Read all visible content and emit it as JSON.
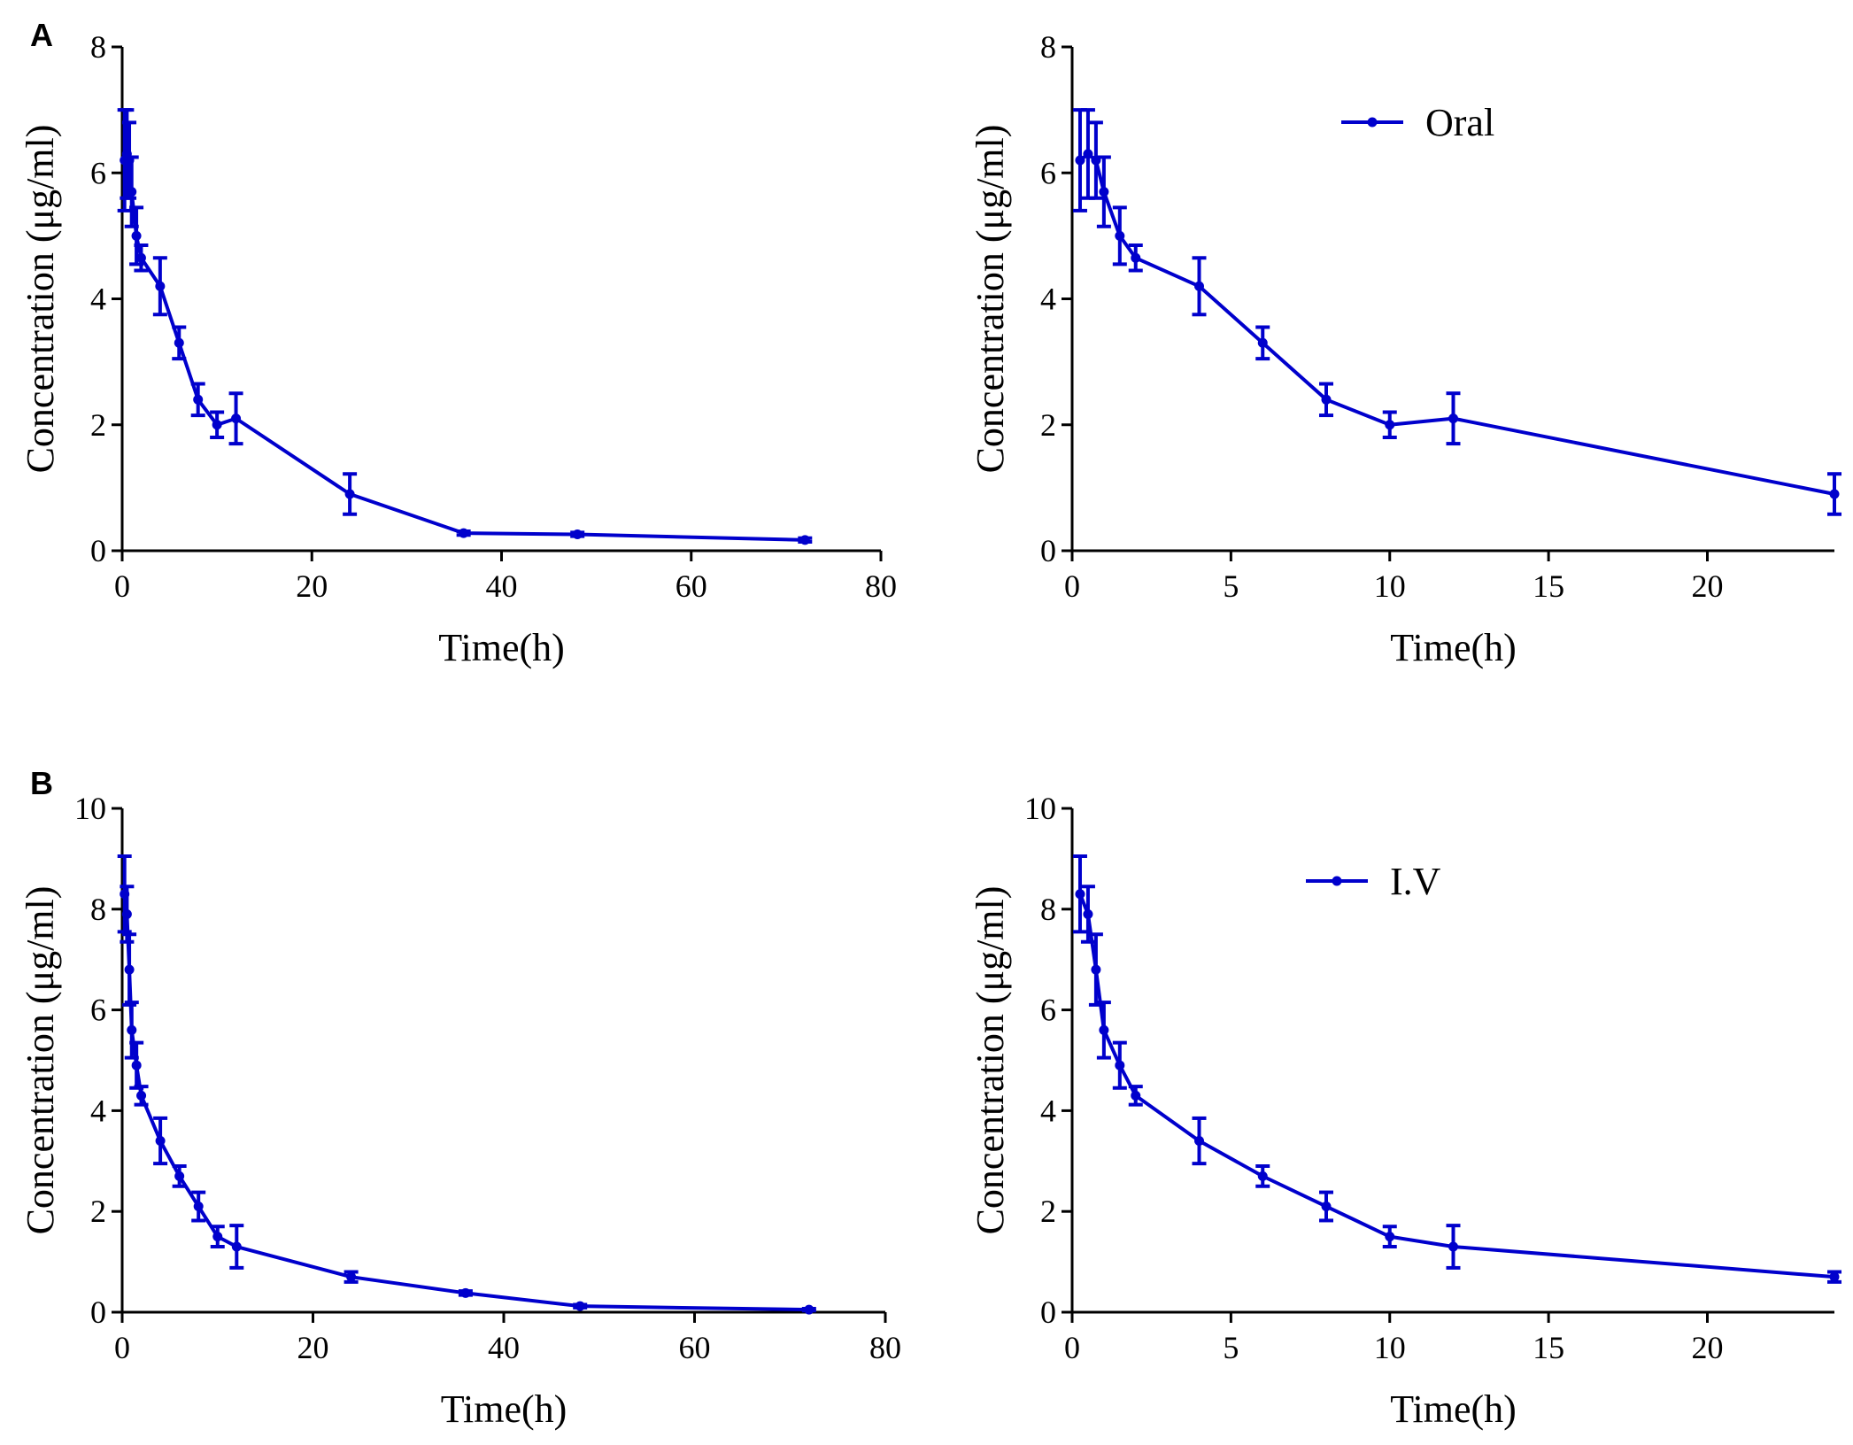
{
  "figure": {
    "panel_labels": [
      "A",
      "B"
    ]
  },
  "chart_data": [
    {
      "id": "A-left",
      "type": "line",
      "panel": "A",
      "xlabel": "Time(h)",
      "ylabel": "Concentration (μg/ml)",
      "xlim": [
        0,
        80
      ],
      "ylim": [
        0,
        8
      ],
      "xticks": [
        0,
        20,
        40,
        60,
        80
      ],
      "yticks": [
        0,
        2,
        4,
        6,
        8
      ],
      "legend": null,
      "series": [
        {
          "name": "Oral",
          "color": "#0000cc",
          "x": [
            0.25,
            0.5,
            0.75,
            1,
            1.5,
            2,
            4,
            6,
            8,
            10,
            12,
            24,
            36,
            48,
            72
          ],
          "y": [
            6.2,
            6.3,
            6.2,
            5.7,
            5.0,
            4.65,
            4.2,
            3.3,
            2.4,
            2.0,
            2.1,
            0.9,
            0.28,
            0.26,
            0.17
          ],
          "err": [
            0.8,
            0.7,
            0.6,
            0.55,
            0.45,
            0.2,
            0.45,
            0.25,
            0.25,
            0.2,
            0.4,
            0.32,
            0.03,
            0.03,
            0.03
          ]
        }
      ]
    },
    {
      "id": "A-right",
      "type": "line",
      "panel": "A",
      "xlabel": "Time(h)",
      "ylabel": "Concentration (μg/ml)",
      "xlim": [
        0,
        24
      ],
      "ylim": [
        0,
        8
      ],
      "xticks": [
        0,
        5,
        10,
        15,
        20
      ],
      "yticks": [
        0,
        2,
        4,
        6,
        8
      ],
      "legend": "Oral",
      "series": [
        {
          "name": "Oral",
          "color": "#0000cc",
          "x": [
            0.25,
            0.5,
            0.75,
            1,
            1.5,
            2,
            4,
            6,
            8,
            10,
            12,
            24
          ],
          "y": [
            6.2,
            6.3,
            6.2,
            5.7,
            5.0,
            4.65,
            4.2,
            3.3,
            2.4,
            2.0,
            2.1,
            0.9
          ],
          "err": [
            0.8,
            0.7,
            0.6,
            0.55,
            0.45,
            0.2,
            0.45,
            0.25,
            0.25,
            0.2,
            0.4,
            0.32
          ]
        }
      ]
    },
    {
      "id": "B-left",
      "type": "line",
      "panel": "B",
      "xlabel": "Time(h)",
      "ylabel": "Concentration (μg/ml)",
      "xlim": [
        0,
        80
      ],
      "ylim": [
        0,
        10
      ],
      "xticks": [
        0,
        20,
        40,
        60,
        80
      ],
      "yticks": [
        0,
        2,
        4,
        6,
        8,
        10
      ],
      "legend": null,
      "series": [
        {
          "name": "I.V",
          "color": "#0000cc",
          "x": [
            0.25,
            0.5,
            0.75,
            1,
            1.5,
            2,
            4,
            6,
            8,
            10,
            12,
            24,
            36,
            48,
            72
          ],
          "y": [
            8.3,
            7.9,
            6.8,
            5.6,
            4.9,
            4.3,
            3.4,
            2.7,
            2.1,
            1.5,
            1.3,
            0.7,
            0.38,
            0.12,
            0.05
          ],
          "err": [
            0.75,
            0.55,
            0.7,
            0.55,
            0.45,
            0.18,
            0.45,
            0.2,
            0.28,
            0.2,
            0.42,
            0.1,
            0.04,
            0.03,
            0.02
          ]
        }
      ]
    },
    {
      "id": "B-right",
      "type": "line",
      "panel": "B",
      "xlabel": "Time(h)",
      "ylabel": "Concentration (μg/ml)",
      "xlim": [
        0,
        24
      ],
      "ylim": [
        0,
        10
      ],
      "xticks": [
        0,
        5,
        10,
        15,
        20
      ],
      "yticks": [
        0,
        2,
        4,
        6,
        8,
        10
      ],
      "legend": "I.V",
      "series": [
        {
          "name": "I.V",
          "color": "#0000cc",
          "x": [
            0.25,
            0.5,
            0.75,
            1,
            1.5,
            2,
            4,
            6,
            8,
            10,
            12,
            24
          ],
          "y": [
            8.3,
            7.9,
            6.8,
            5.6,
            4.9,
            4.3,
            3.4,
            2.7,
            2.1,
            1.5,
            1.3,
            0.7
          ],
          "err": [
            0.75,
            0.55,
            0.7,
            0.55,
            0.45,
            0.18,
            0.45,
            0.2,
            0.28,
            0.2,
            0.42,
            0.1
          ]
        }
      ]
    }
  ]
}
